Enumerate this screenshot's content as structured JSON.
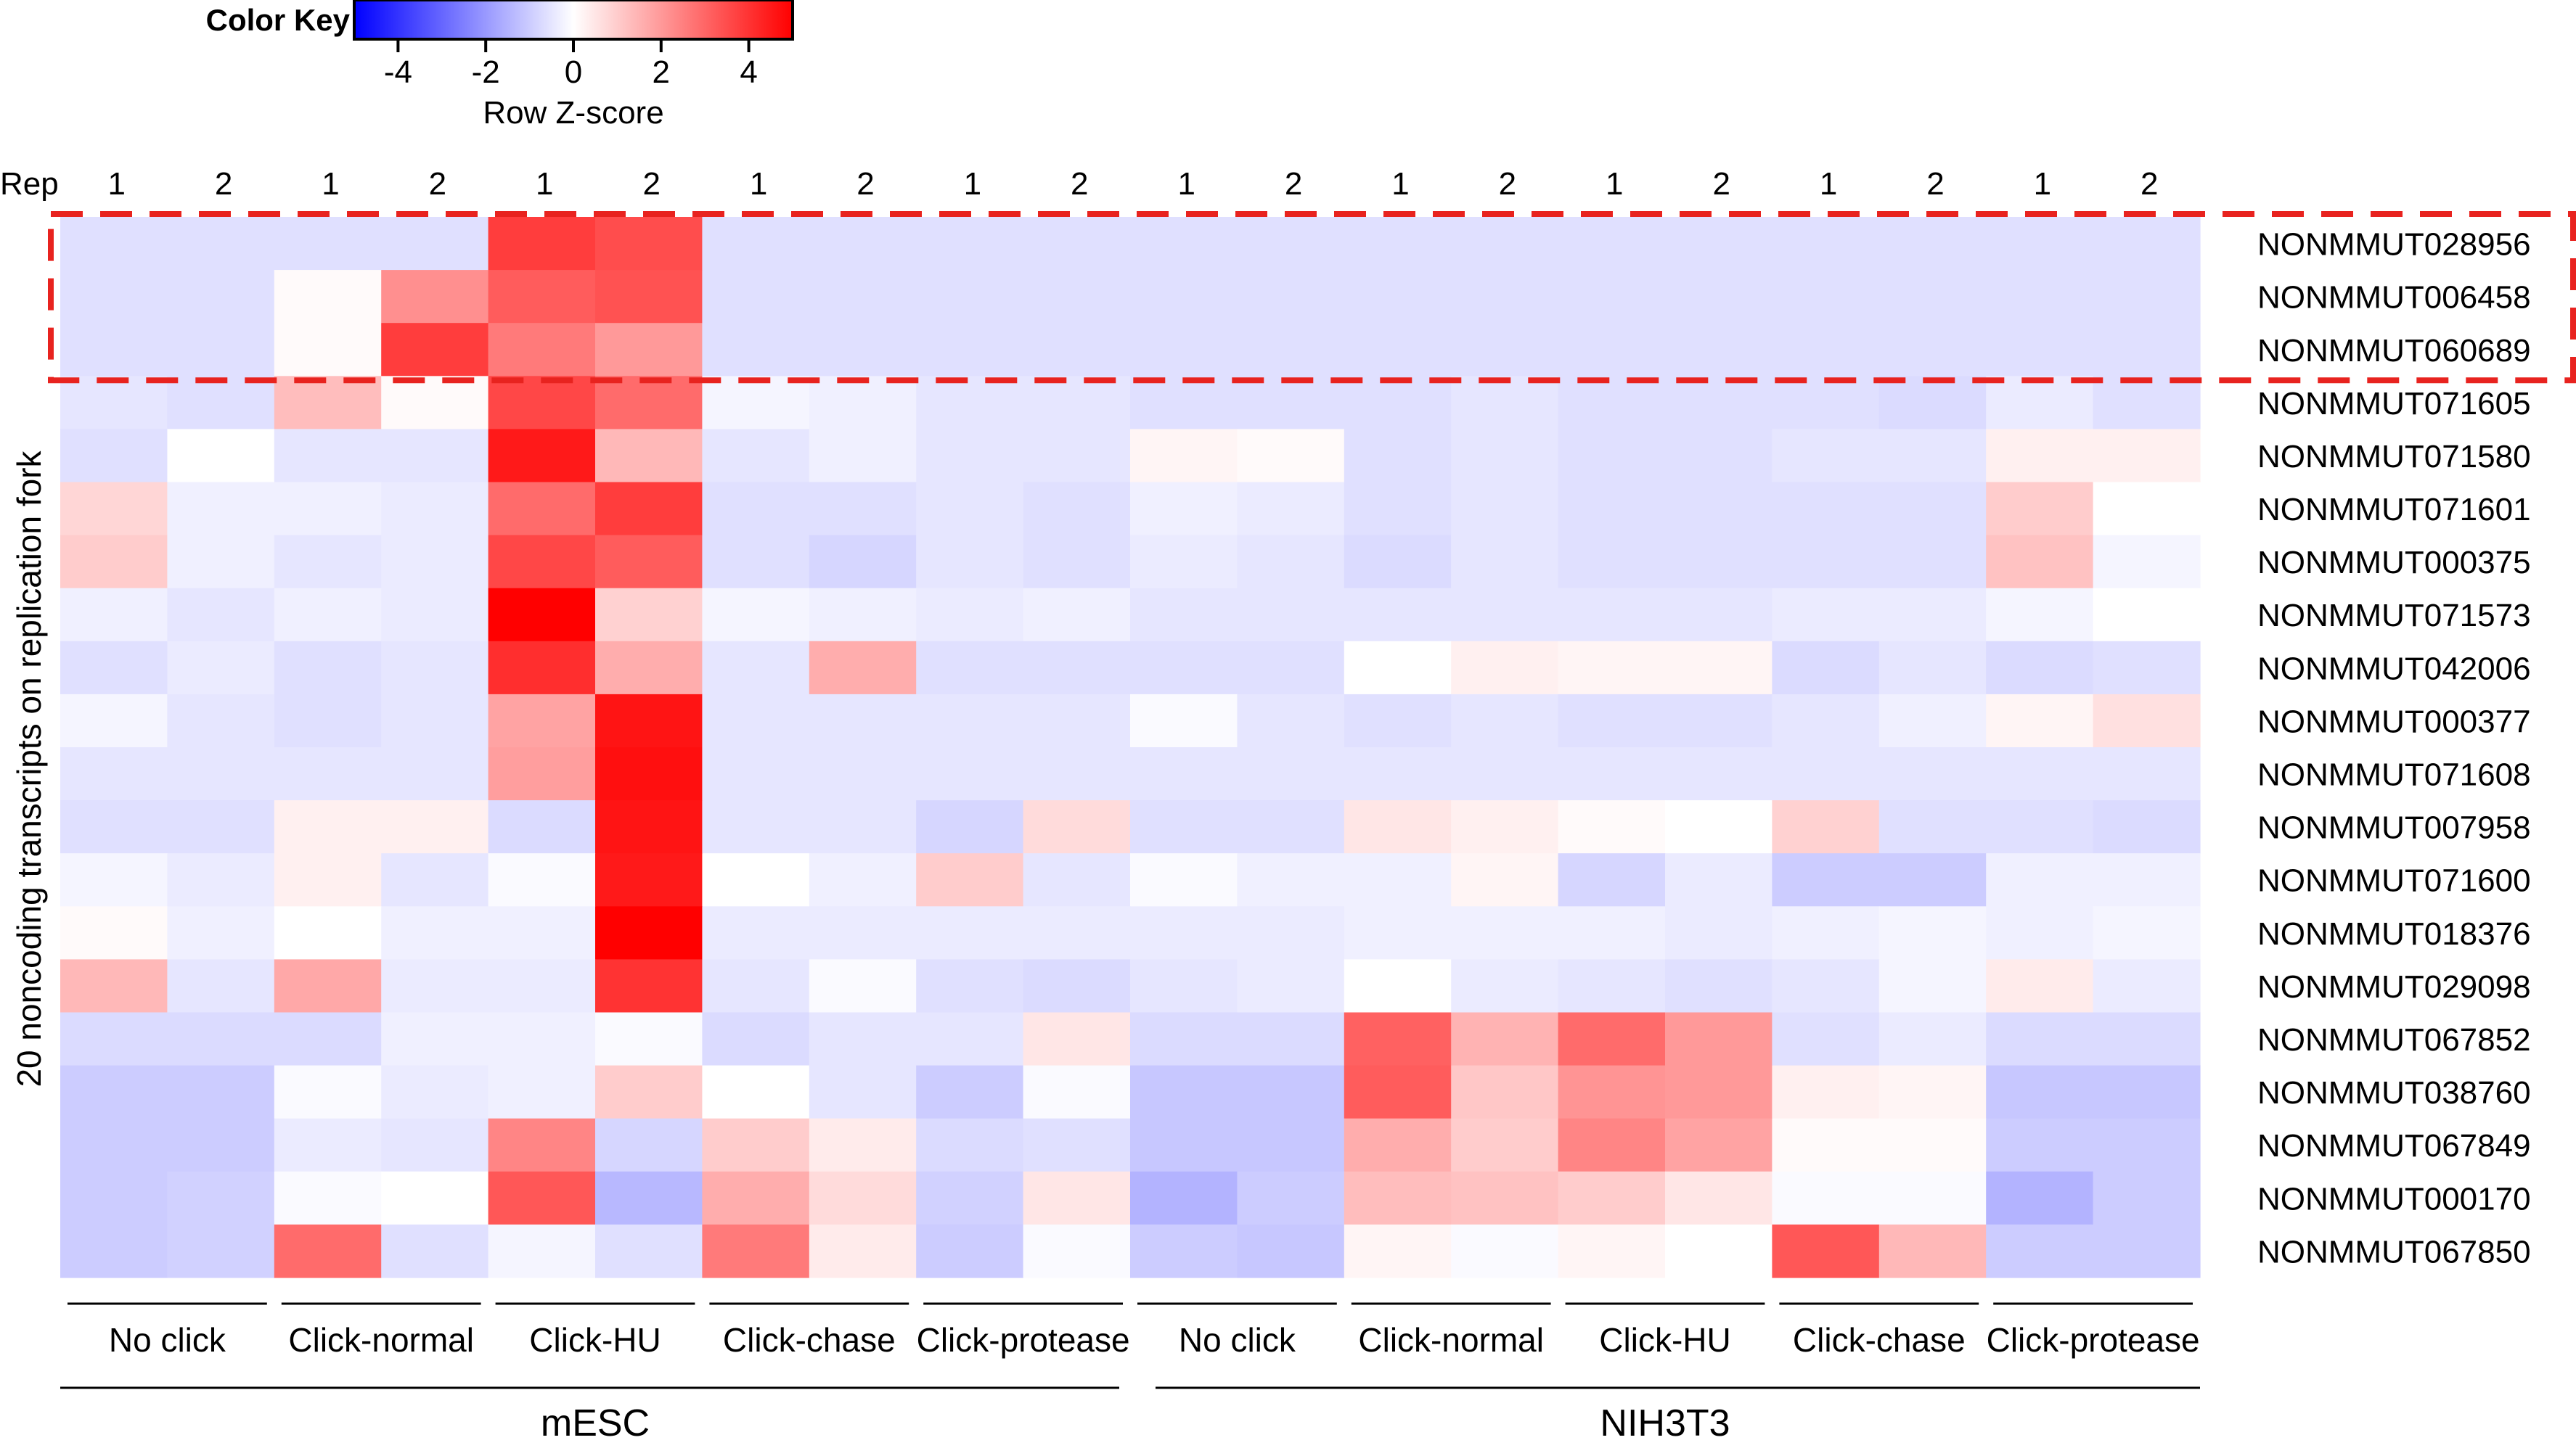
{
  "chart_data": {
    "type": "heatmap",
    "title": "",
    "color_key": {
      "title": "Color Key",
      "label": "Row Z-score",
      "ticks": [
        "-4",
        "-2",
        "0",
        "2",
        "4"
      ],
      "range": [
        -5,
        5
      ],
      "colors": {
        "low": "#0000ff",
        "mid": "#ffffff",
        "high": "#ff0000"
      }
    },
    "rep_header": "Rep",
    "rep_labels": [
      "1",
      "2",
      "1",
      "2",
      "1",
      "2",
      "1",
      "2",
      "1",
      "2",
      "1",
      "2",
      "1",
      "2",
      "1",
      "2",
      "1",
      "2",
      "1",
      "2"
    ],
    "y_axis_title": "20 noncoding transcripts on replication fork",
    "conditions": [
      "No click",
      "Click-normal",
      "Click-HU",
      "Click-chase",
      "Click-protease",
      "No click",
      "Click-normal",
      "Click-HU",
      "Click-chase",
      "Click-protease"
    ],
    "cell_types": [
      "mESC",
      "NIH3T3"
    ],
    "columns": [
      "mESC No click 1",
      "mESC No click 2",
      "mESC Click-normal 1",
      "mESC Click-normal 2",
      "mESC Click-HU 1",
      "mESC Click-HU 2",
      "mESC Click-chase 1",
      "mESC Click-chase 2",
      "mESC Click-protease 1",
      "mESC Click-protease 2",
      "NIH3T3 No click 1",
      "NIH3T3 No click 2",
      "NIH3T3 Click-normal 1",
      "NIH3T3 Click-normal 2",
      "NIH3T3 Click-HU 1",
      "NIH3T3 Click-HU 2",
      "NIH3T3 Click-chase 1",
      "NIH3T3 Click-chase 2",
      "NIH3T3 Click-protease 1",
      "NIH3T3 Click-protease 2"
    ],
    "rows": [
      "NONMMUT028956",
      "NONMMUT006458",
      "NONMMUT060689",
      "NONMMUT071605",
      "NONMMUT071580",
      "NONMMUT071601",
      "NONMMUT000375",
      "NONMMUT071573",
      "NONMMUT042006",
      "NONMMUT000377",
      "NONMMUT071608",
      "NONMMUT007958",
      "NONMMUT071600",
      "NONMMUT018376",
      "NONMMUT029098",
      "NONMMUT067852",
      "NONMMUT038760",
      "NONMMUT067849",
      "NONMMUT000170",
      "NONMMUT067850"
    ],
    "highlighted_rows": [
      "NONMMUT028956",
      "NONMMUT006458",
      "NONMMUT060689"
    ],
    "values": [
      [
        -0.6,
        -0.6,
        -0.6,
        -0.6,
        3.8,
        3.5,
        -0.6,
        -0.6,
        -0.6,
        -0.6,
        -0.6,
        -0.6,
        -0.6,
        -0.6,
        -0.6,
        -0.6,
        -0.6,
        -0.6,
        -0.6,
        -0.6
      ],
      [
        -0.6,
        -0.6,
        0.1,
        2.2,
        3.2,
        3.4,
        -0.6,
        -0.6,
        -0.6,
        -0.6,
        -0.6,
        -0.6,
        -0.6,
        -0.6,
        -0.6,
        -0.6,
        -0.6,
        -0.6,
        -0.6,
        -0.6
      ],
      [
        -0.6,
        -0.6,
        0.1,
        3.8,
        2.6,
        2.0,
        -0.6,
        -0.6,
        -0.6,
        -0.6,
        -0.6,
        -0.6,
        -0.6,
        -0.6,
        -0.6,
        -0.6,
        -0.6,
        -0.6,
        -0.6,
        -0.6
      ],
      [
        -0.5,
        -0.6,
        1.3,
        0.1,
        3.6,
        2.9,
        -0.2,
        -0.3,
        -0.5,
        -0.5,
        -0.6,
        -0.6,
        -0.6,
        -0.5,
        -0.6,
        -0.6,
        -0.6,
        -0.7,
        -0.4,
        -0.6
      ],
      [
        -0.6,
        0.0,
        -0.5,
        -0.5,
        4.5,
        1.4,
        -0.5,
        -0.3,
        -0.5,
        -0.5,
        0.2,
        0.1,
        -0.6,
        -0.5,
        -0.6,
        -0.6,
        -0.5,
        -0.5,
        0.3,
        0.3
      ],
      [
        0.8,
        -0.3,
        -0.3,
        -0.4,
        2.9,
        3.8,
        -0.6,
        -0.6,
        -0.5,
        -0.6,
        -0.3,
        -0.4,
        -0.6,
        -0.5,
        -0.6,
        -0.6,
        -0.6,
        -0.6,
        1.0,
        0.0
      ],
      [
        1.0,
        -0.3,
        -0.5,
        -0.4,
        3.6,
        3.2,
        -0.6,
        -0.8,
        -0.5,
        -0.6,
        -0.4,
        -0.5,
        -0.7,
        -0.5,
        -0.6,
        -0.6,
        -0.6,
        -0.6,
        1.2,
        -0.2
      ],
      [
        -0.3,
        -0.5,
        -0.3,
        -0.4,
        5.0,
        0.9,
        -0.2,
        -0.3,
        -0.4,
        -0.3,
        -0.5,
        -0.5,
        -0.5,
        -0.5,
        -0.5,
        -0.5,
        -0.4,
        -0.4,
        -0.2,
        0.0
      ],
      [
        -0.6,
        -0.4,
        -0.6,
        -0.5,
        4.1,
        1.6,
        -0.5,
        1.6,
        -0.6,
        -0.6,
        -0.6,
        -0.6,
        0.0,
        0.3,
        0.2,
        0.2,
        -0.7,
        -0.5,
        -0.7,
        -0.6
      ],
      [
        -0.2,
        -0.5,
        -0.6,
        -0.5,
        1.8,
        4.6,
        -0.5,
        -0.5,
        -0.5,
        -0.5,
        -0.1,
        -0.5,
        -0.6,
        -0.5,
        -0.6,
        -0.6,
        -0.5,
        -0.3,
        0.2,
        0.6
      ],
      [
        -0.5,
        -0.5,
        -0.5,
        -0.5,
        1.9,
        4.7,
        -0.5,
        -0.5,
        -0.5,
        -0.5,
        -0.5,
        -0.5,
        -0.5,
        -0.5,
        -0.5,
        -0.5,
        -0.5,
        -0.5,
        -0.5,
        -0.5
      ],
      [
        -0.6,
        -0.6,
        0.3,
        0.3,
        -0.7,
        4.6,
        -0.5,
        -0.5,
        -0.8,
        0.7,
        -0.6,
        -0.6,
        0.5,
        0.3,
        0.1,
        0.0,
        0.9,
        -0.6,
        -0.6,
        -0.7
      ],
      [
        -0.2,
        -0.4,
        0.3,
        -0.5,
        -0.1,
        4.5,
        0.0,
        -0.3,
        1.0,
        -0.5,
        -0.1,
        -0.3,
        -0.3,
        0.2,
        -0.8,
        -0.4,
        -1.0,
        -1.0,
        -0.3,
        -0.3
      ],
      [
        0.1,
        -0.3,
        0.0,
        -0.3,
        -0.3,
        5.0,
        -0.4,
        -0.4,
        -0.4,
        -0.4,
        -0.4,
        -0.4,
        -0.3,
        -0.3,
        -0.3,
        -0.4,
        -0.3,
        -0.2,
        -0.3,
        -0.2
      ],
      [
        1.4,
        -0.5,
        1.7,
        -0.4,
        -0.4,
        4.0,
        -0.5,
        -0.1,
        -0.6,
        -0.7,
        -0.5,
        -0.4,
        0.0,
        -0.4,
        -0.5,
        -0.6,
        -0.5,
        -0.2,
        0.4,
        -0.4
      ],
      [
        -0.7,
        -0.7,
        -0.7,
        -0.3,
        -0.3,
        -0.1,
        -0.7,
        -0.5,
        -0.5,
        0.5,
        -0.7,
        -0.7,
        3.1,
        1.5,
        2.9,
        2.0,
        -0.6,
        -0.4,
        -0.7,
        -0.7
      ],
      [
        -1.0,
        -1.0,
        -0.1,
        -0.4,
        -0.3,
        1.0,
        0.0,
        -0.5,
        -1.0,
        -0.1,
        -1.1,
        -1.1,
        3.2,
        1.1,
        2.1,
        2.0,
        0.3,
        0.2,
        -1.1,
        -1.1
      ],
      [
        -1.0,
        -1.0,
        -0.4,
        -0.5,
        2.4,
        -0.8,
        1.0,
        0.4,
        -0.7,
        -0.6,
        -1.1,
        -1.1,
        1.6,
        1.0,
        2.4,
        1.8,
        0.1,
        0.1,
        -1.0,
        -1.0
      ],
      [
        -1.0,
        -0.9,
        -0.1,
        0.0,
        3.3,
        -1.4,
        1.6,
        0.7,
        -0.9,
        0.5,
        -1.5,
        -1.0,
        1.3,
        1.2,
        1.0,
        0.5,
        -0.1,
        -0.1,
        -1.5,
        -1.0
      ],
      [
        -1.0,
        -0.9,
        2.9,
        -0.6,
        -0.2,
        -0.6,
        2.6,
        0.4,
        -1.0,
        -0.1,
        -1.0,
        -1.1,
        0.2,
        -0.1,
        0.2,
        0.0,
        3.3,
        1.4,
        -1.0,
        -1.0
      ]
    ]
  }
}
